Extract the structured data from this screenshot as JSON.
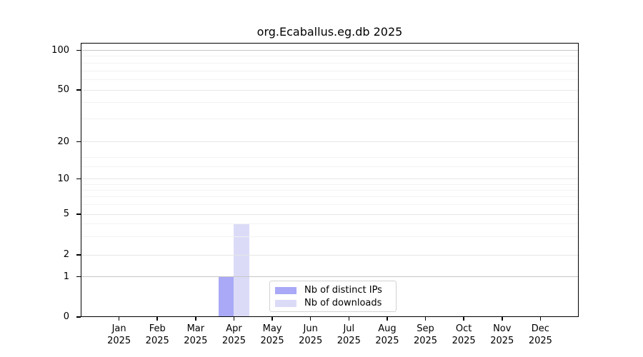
{
  "chart_data": {
    "type": "bar",
    "title": "org.Ecaballus.eg.db 2025",
    "categories": [
      "Jan",
      "Feb",
      "Mar",
      "Apr",
      "May",
      "Jun",
      "Jul",
      "Aug",
      "Sep",
      "Oct",
      "Nov",
      "Dec"
    ],
    "category_year": "2025",
    "series": [
      {
        "name": "Nb of distinct IPs",
        "color": "#a9a9f7",
        "values": [
          0,
          0,
          0,
          1,
          0,
          0,
          0,
          0,
          0,
          0,
          0,
          0
        ]
      },
      {
        "name": "Nb of downloads",
        "color": "#dbdbf8",
        "values": [
          0,
          0,
          0,
          4,
          0,
          0,
          0,
          0,
          0,
          0,
          0,
          0
        ]
      }
    ],
    "yaxis": {
      "scale": "log-like",
      "tick_values": [
        0,
        1,
        2,
        5,
        10,
        20,
        50,
        100
      ],
      "tick_labels": [
        "0",
        "1",
        "2",
        "5",
        "10",
        "20",
        "50",
        "100"
      ],
      "minor_grid_values": [
        3,
        4,
        6,
        7,
        8,
        9,
        12.5,
        15,
        30,
        40,
        60,
        70,
        80,
        90
      ],
      "ylim": [
        0,
        110
      ]
    },
    "grid": true,
    "legend_position": "inside-bottom-center",
    "colors": {
      "strong_gridline": "#c6c6c6",
      "major_gridline": "#e7e7e7",
      "minor_gridline": "#f2f2f2",
      "axis": "#000000"
    }
  }
}
